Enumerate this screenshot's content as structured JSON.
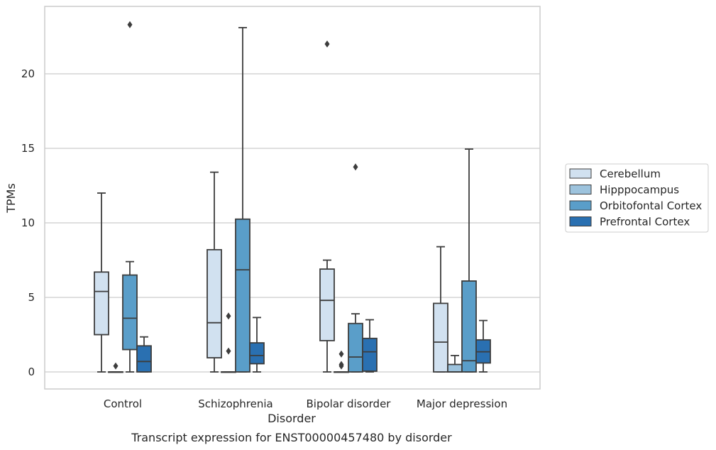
{
  "chart_data": {
    "type": "box",
    "caption": "Transcript expression for ENST00000457480 by disorder",
    "xlabel": "Disorder",
    "ylabel": "TPMs",
    "ylim": [
      -1.1,
      24.5
    ],
    "yticks": [
      0,
      5,
      10,
      15,
      20
    ],
    "grid": "horizontal",
    "legend_position": "right-outside",
    "categories": [
      "Control",
      "Schizophrenia",
      "Bipolar disorder",
      "Major depression"
    ],
    "series": [
      {
        "name": "Cerebellum",
        "color": "#d1e1f0",
        "boxes": [
          {
            "q1": 2.5,
            "median": 5.4,
            "q3": 6.7,
            "whisker_low": 0,
            "whisker_high": 12.0,
            "outliers": []
          },
          {
            "q1": 0.95,
            "median": 3.3,
            "q3": 8.2,
            "whisker_low": 0,
            "whisker_high": 13.4,
            "outliers": []
          },
          {
            "q1": 2.1,
            "median": 4.8,
            "q3": 6.9,
            "whisker_low": 0,
            "whisker_high": 7.5,
            "outliers": [
              22.0
            ]
          },
          {
            "q1": 0,
            "median": 2.0,
            "q3": 4.6,
            "whisker_low": 0,
            "whisker_high": 8.4,
            "outliers": []
          }
        ]
      },
      {
        "name": "Hipppocampus",
        "color": "#9dc3dd",
        "boxes": [
          {
            "q1": 0,
            "median": 0,
            "q3": 0,
            "whisker_low": 0,
            "whisker_high": 0,
            "outliers": [
              0.4
            ]
          },
          {
            "q1": 0,
            "median": 0,
            "q3": 0,
            "whisker_low": 0,
            "whisker_high": 0,
            "outliers": [
              3.75,
              1.4
            ]
          },
          {
            "q1": 0,
            "median": 0,
            "q3": 0,
            "whisker_low": 0,
            "whisker_high": 0,
            "outliers": [
              1.2,
              0.5,
              0.4
            ]
          },
          {
            "q1": 0,
            "median": 0,
            "q3": 0.5,
            "whisker_low": 0,
            "whisker_high": 1.1,
            "outliers": []
          }
        ]
      },
      {
        "name": "Orbitofontal Cortex",
        "color": "#5a9ec9",
        "boxes": [
          {
            "q1": 1.5,
            "median": 3.6,
            "q3": 6.5,
            "whisker_low": 0,
            "whisker_high": 7.4,
            "outliers": [
              23.3
            ]
          },
          {
            "q1": 0,
            "median": 6.85,
            "q3": 10.25,
            "whisker_low": 0,
            "whisker_high": 23.1,
            "outliers": []
          },
          {
            "q1": 0,
            "median": 1.0,
            "q3": 3.25,
            "whisker_low": 0,
            "whisker_high": 3.9,
            "outliers": [
              13.75
            ]
          },
          {
            "q1": 0,
            "median": 0.75,
            "q3": 6.1,
            "whisker_low": 0,
            "whisker_high": 14.95,
            "outliers": []
          }
        ]
      },
      {
        "name": "Prefrontal Cortex",
        "color": "#2a70b1",
        "boxes": [
          {
            "q1": 0,
            "median": 0.7,
            "q3": 1.75,
            "whisker_low": 0,
            "whisker_high": 2.35,
            "outliers": []
          },
          {
            "q1": 0.55,
            "median": 1.1,
            "q3": 1.95,
            "whisker_low": 0,
            "whisker_high": 3.65,
            "outliers": []
          },
          {
            "q1": 0.05,
            "median": 1.35,
            "q3": 2.25,
            "whisker_low": 0,
            "whisker_high": 3.5,
            "outliers": []
          },
          {
            "q1": 0.6,
            "median": 1.35,
            "q3": 2.15,
            "whisker_low": 0,
            "whisker_high": 3.45,
            "outliers": []
          }
        ]
      }
    ]
  }
}
